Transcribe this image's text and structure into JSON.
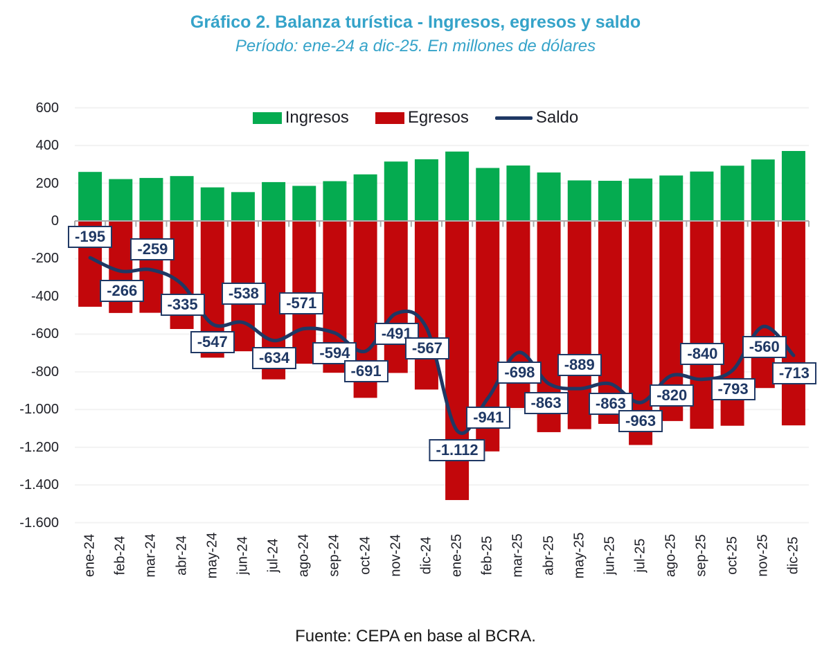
{
  "title": "Gráfico 2. Balanza turística - Ingresos, egresos y saldo",
  "subtitle": "Período: ene-24 a dic-25. En millones de dólares",
  "source": "Fuente: CEPA en base al BCRA.",
  "legend": {
    "ingresos": "Ingresos",
    "egresos": "Egresos",
    "saldo": "Saldo"
  },
  "colors": {
    "title": "#35a3c9",
    "ingresos": "#05ab50",
    "egresos": "#c2070b",
    "saldo": "#1f3864",
    "grid": "#f2f2f2",
    "axis": "#ababab",
    "text": "#1e1f26"
  },
  "chart_data": {
    "type": "combo-bar-line",
    "title": "Gráfico 2. Balanza turística - Ingresos, egresos y saldo",
    "subtitle": "Período: ene-24 a dic-25. En millones de dólares",
    "unit": "millones de dólares",
    "categories": [
      "ene-24",
      "feb-24",
      "mar-24",
      "abr-24",
      "may-24",
      "jun-24",
      "jul-24",
      "ago-24",
      "sep-24",
      "oct-24",
      "nov-24",
      "dic-24",
      "ene-25",
      "feb-25",
      "mar-25",
      "abr-25",
      "may-25",
      "jun-25",
      "jul-25",
      "ago-25",
      "sep-25",
      "oct-25",
      "nov-25",
      "dic-25"
    ],
    "series": [
      {
        "name": "Ingresos",
        "type": "bar",
        "color": "#05ab50",
        "values": [
          260,
          222,
          228,
          238,
          178,
          153,
          206,
          186,
          211,
          247,
          315,
          327,
          368,
          281,
          294,
          257,
          215,
          213,
          225,
          241,
          262,
          293,
          326,
          371
        ]
      },
      {
        "name": "Egresos",
        "type": "bar",
        "color": "#c2070b",
        "values": [
          -455,
          -488,
          -487,
          -573,
          -725,
          -691,
          -840,
          -757,
          -805,
          -938,
          -806,
          -894,
          -1480,
          -1222,
          -992,
          -1120,
          -1104,
          -1076,
          -1188,
          -1061,
          -1102,
          -1086,
          -886,
          -1084
        ]
      },
      {
        "name": "Saldo",
        "type": "line",
        "color": "#1f3864",
        "smooth": true,
        "values": [
          -195,
          -266,
          -259,
          -335,
          -547,
          -538,
          -634,
          -571,
          -594,
          -691,
          -491,
          -567,
          -1112,
          -941,
          -698,
          -863,
          -889,
          -863,
          -963,
          -820,
          -840,
          -793,
          -560,
          -713
        ],
        "labels": [
          "-195",
          "-266",
          "-259",
          "-335",
          "-547",
          "-538",
          "-634",
          "-571",
          "-594",
          "-691",
          "-491",
          "-567",
          "-1.112",
          "-941",
          "-698",
          "-863",
          "-889",
          "-863",
          "-963",
          "-820",
          "-840",
          "-793",
          "-560",
          "-713"
        ]
      }
    ],
    "ylim": [
      -1600,
      600
    ],
    "ytick_step": 200,
    "ytick_labels": [
      "600",
      "400",
      "200",
      "0",
      "-200",
      "-400",
      "-600",
      "-800",
      "-1.000",
      "-1.200",
      "-1.400",
      "-1.600"
    ],
    "grid": true,
    "legend_position": "top",
    "label_offsets_dy": [
      -30,
      29,
      -30,
      30,
      26,
      -41,
      25,
      -36,
      29,
      29,
      29,
      30,
      28,
      28,
      29,
      28,
      -34,
      29,
      27,
      29,
      -37,
      27,
      30,
      26
    ],
    "label_offsets_dx": [
      0,
      2,
      2,
      1,
      0,
      1,
      1,
      -4,
      0,
      1,
      1,
      1,
      0,
      1,
      2,
      -4,
      0,
      1,
      0,
      1,
      1,
      1,
      2,
      1
    ]
  }
}
